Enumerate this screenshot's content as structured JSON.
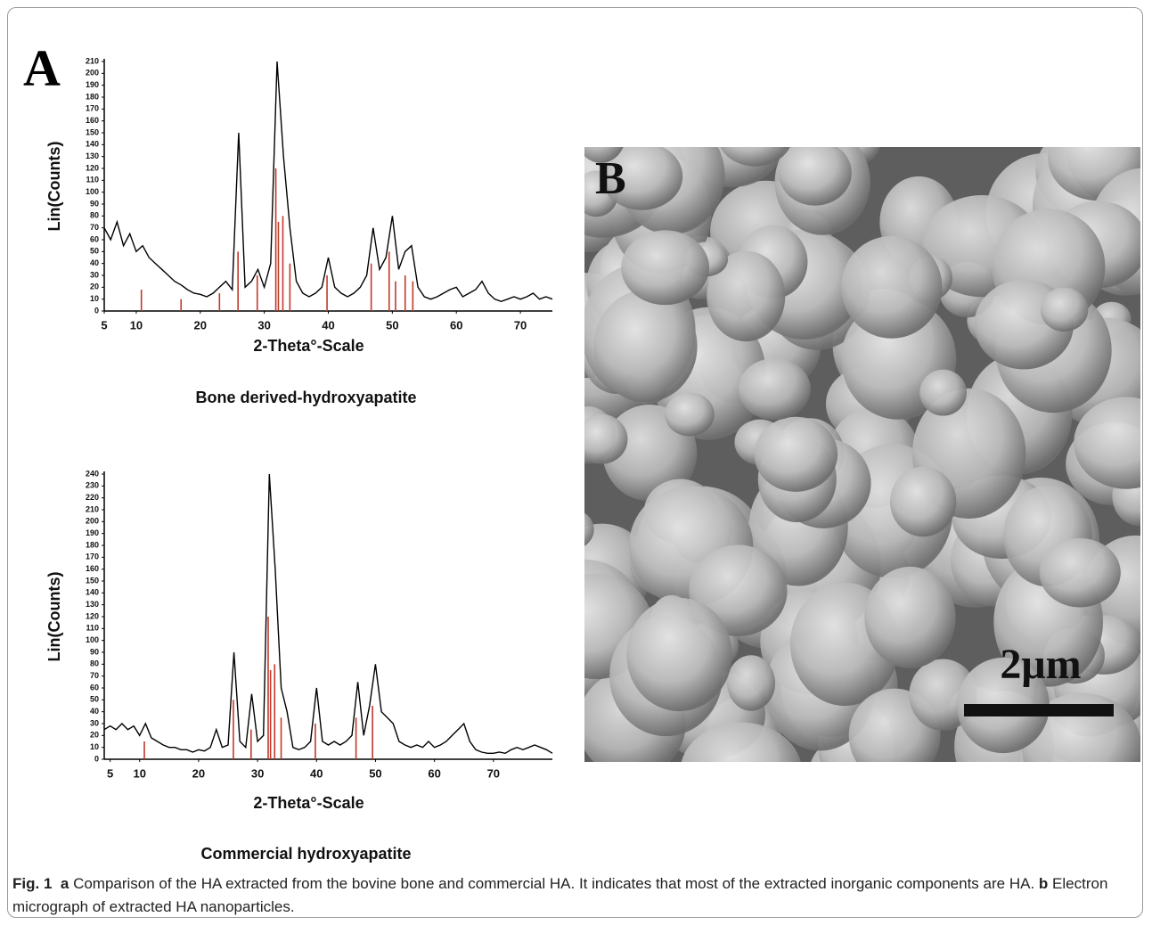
{
  "panel_a_label": "A",
  "chart_data": [
    {
      "type": "line",
      "title": "Bone derived-hydroxyapatite",
      "xlabel": "2-Theta°-Scale",
      "ylabel": "Lin(Counts)",
      "xlim": [
        5,
        75
      ],
      "ylim": [
        0,
        210
      ],
      "xticks": [
        5,
        10,
        20,
        30,
        40,
        50,
        60,
        70
      ],
      "yticks": [
        0,
        10,
        20,
        30,
        40,
        50,
        60,
        70,
        80,
        90,
        100,
        110,
        120,
        130,
        140,
        150,
        160,
        170,
        180,
        190,
        200,
        210
      ],
      "series": [
        {
          "color": "#000000",
          "style": "line",
          "x": [
            5,
            6,
            7,
            8,
            9,
            10,
            11,
            12,
            13,
            14,
            15,
            16,
            17,
            18,
            19,
            20,
            21,
            22,
            23,
            24,
            25,
            26,
            27,
            28,
            29,
            30,
            31,
            32,
            33,
            34,
            35,
            36,
            37,
            38,
            39,
            40,
            41,
            42,
            43,
            44,
            45,
            46,
            47,
            48,
            49,
            50,
            51,
            52,
            53,
            54,
            55,
            56,
            57,
            58,
            59,
            60,
            61,
            62,
            63,
            64,
            65,
            66,
            67,
            68,
            69,
            70,
            71,
            72,
            73,
            74,
            75
          ],
          "values": [
            70,
            60,
            75,
            55,
            65,
            50,
            55,
            45,
            40,
            35,
            30,
            25,
            22,
            18,
            15,
            14,
            12,
            15,
            20,
            25,
            18,
            150,
            20,
            25,
            35,
            20,
            40,
            210,
            130,
            70,
            25,
            15,
            12,
            15,
            20,
            45,
            20,
            15,
            12,
            15,
            20,
            30,
            70,
            35,
            45,
            80,
            35,
            50,
            55,
            20,
            12,
            10,
            12,
            15,
            18,
            20,
            12,
            15,
            18,
            25,
            15,
            10,
            8,
            10,
            12,
            10,
            12,
            15,
            10,
            12,
            10
          ]
        },
        {
          "color": "#c0392b",
          "style": "sticks",
          "x": [
            10.8,
            17,
            23,
            25.9,
            28.9,
            31.8,
            32.2,
            32.9,
            34,
            39.8,
            46.7,
            49.5,
            50.5,
            52,
            53.2
          ],
          "values": [
            18,
            10,
            15,
            50,
            30,
            120,
            75,
            80,
            40,
            30,
            40,
            50,
            25,
            30,
            25
          ]
        }
      ]
    },
    {
      "type": "line",
      "title": "Commercial hydroxyapatite",
      "xlabel": "2-Theta°-Scale",
      "ylabel": "Lin(Counts)",
      "xlim": [
        4,
        80
      ],
      "ylim": [
        0,
        240
      ],
      "xticks": [
        5,
        10,
        20,
        30,
        40,
        50,
        60,
        70
      ],
      "yticks": [
        0,
        10,
        20,
        30,
        40,
        50,
        60,
        70,
        80,
        90,
        100,
        110,
        120,
        130,
        140,
        150,
        160,
        170,
        180,
        190,
        200,
        210,
        220,
        230,
        240
      ],
      "series": [
        {
          "color": "#000000",
          "style": "line",
          "x": [
            4,
            5,
            6,
            7,
            8,
            9,
            10,
            11,
            12,
            13,
            14,
            15,
            16,
            17,
            18,
            19,
            20,
            21,
            22,
            23,
            24,
            25,
            26,
            27,
            28,
            29,
            30,
            31,
            32,
            33,
            34,
            35,
            36,
            37,
            38,
            39,
            40,
            41,
            42,
            43,
            44,
            45,
            46,
            47,
            48,
            49,
            50,
            51,
            52,
            53,
            54,
            55,
            56,
            57,
            58,
            59,
            60,
            61,
            62,
            63,
            64,
            65,
            66,
            67,
            68,
            69,
            70,
            71,
            72,
            73,
            74,
            75,
            76,
            77,
            78,
            79,
            80
          ],
          "values": [
            25,
            28,
            25,
            30,
            25,
            28,
            20,
            30,
            18,
            15,
            12,
            10,
            10,
            8,
            8,
            6,
            8,
            7,
            10,
            25,
            10,
            12,
            90,
            15,
            10,
            55,
            15,
            20,
            240,
            160,
            60,
            40,
            10,
            8,
            10,
            15,
            60,
            15,
            12,
            15,
            12,
            15,
            20,
            65,
            20,
            45,
            80,
            40,
            35,
            30,
            15,
            12,
            10,
            12,
            10,
            15,
            10,
            12,
            15,
            20,
            25,
            30,
            15,
            8,
            6,
            5,
            5,
            6,
            5,
            8,
            10,
            8,
            10,
            12,
            10,
            8,
            5
          ]
        },
        {
          "color": "#c0392b",
          "style": "sticks",
          "x": [
            10.8,
            25.9,
            28.9,
            31.8,
            32.2,
            32.9,
            34,
            39.8,
            46.7,
            49.5
          ],
          "values": [
            15,
            50,
            25,
            120,
            75,
            80,
            35,
            30,
            35,
            45
          ]
        }
      ]
    }
  ],
  "panel_b": {
    "label": "B",
    "scale_bar": "2μm"
  },
  "caption": {
    "figure": "Fig. 1",
    "parts": [
      {
        "label": "a",
        "text": "Comparison of the HA extracted from the bovine bone and commercial HA. It indicates that most of the extracted inorganic components are HA."
      },
      {
        "label": "b",
        "text": "Electron micrograph of extracted HA nanoparticles."
      }
    ]
  }
}
